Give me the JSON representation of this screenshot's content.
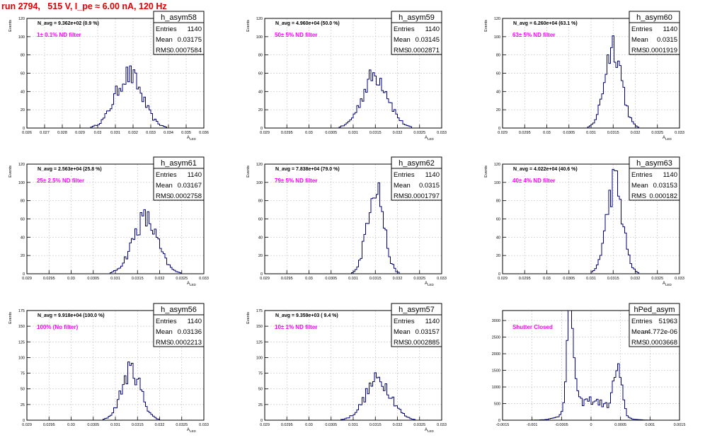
{
  "run_title": "run 2794,   515 V, I_pe ≈ 6.00 nA, 120 Hz",
  "colors": {
    "title": "#e00000",
    "hist": "#00007a",
    "annotation": "#ff00ff",
    "grid": "#c8c8c8"
  },
  "stats_labels": {
    "entries": "Entries",
    "mean": "Mean",
    "rms": "RMS"
  },
  "chart_data": [
    {
      "type": "histogram",
      "name": "h_asym58",
      "title": "",
      "ylabel": "Events",
      "xlabel": "A_LED",
      "navg": "N_avg = 9.362e+02 (0.9 %)",
      "note": "1± 0.1% ND filter",
      "entries": "1140",
      "mean": "0.03175",
      "rms": "0.0007584",
      "xlim": [
        0.026,
        0.036
      ],
      "ylim": [
        0,
        120
      ],
      "yticks": [
        0,
        20,
        40,
        60,
        80,
        100,
        120
      ],
      "xticks": [
        0.026,
        0.027,
        0.028,
        0.029,
        0.03,
        0.031,
        0.032,
        0.033,
        0.034,
        0.035,
        0.036
      ],
      "xtick_labels": [
        "0.026",
        "0.027",
        "0.028",
        "0.029",
        "0.03",
        "0.031",
        "0.032",
        "0.033",
        "0.034",
        "0.035",
        "0.036"
      ],
      "shape": [
        [
          0.03175,
          0.0007584,
          58
        ]
      ]
    },
    {
      "type": "histogram",
      "name": "h_asym59",
      "title": "",
      "ylabel": "Events",
      "xlabel": "A_LED",
      "navg": "N_avg = 4.960e+04 (50.0 %)",
      "note": "50± 5% ND filter",
      "entries": "1140",
      "mean": "0.03145",
      "rms": "0.0002871",
      "xlim": [
        0.029,
        0.033
      ],
      "ylim": [
        0,
        120
      ],
      "yticks": [
        0,
        20,
        40,
        60,
        80,
        100,
        120
      ],
      "xticks": [
        0.029,
        0.0295,
        0.03,
        0.0305,
        0.031,
        0.0315,
        0.032,
        0.0325,
        0.033
      ],
      "xtick_labels": [
        "0.029",
        "0.0295",
        "0.03",
        "0.0305",
        "0.031",
        "0.0315",
        "0.032",
        "0.0325",
        "0.033"
      ],
      "shape": [
        [
          0.0315,
          0.00029,
          58
        ]
      ]
    },
    {
      "type": "histogram",
      "name": "h_asym60",
      "title": "",
      "ylabel": "Events",
      "xlabel": "A_LED",
      "navg": "N_avg = 6.260e+04 (63.1 %)",
      "note": "63± 5% ND filter",
      "entries": "1140",
      "mean": "0.0315",
      "rms": "0.0001919",
      "xlim": [
        0.029,
        0.033
      ],
      "ylim": [
        0,
        120
      ],
      "yticks": [
        0,
        20,
        40,
        60,
        80,
        100,
        120
      ],
      "xticks": [
        0.029,
        0.0295,
        0.03,
        0.0305,
        0.031,
        0.0315,
        0.032,
        0.0325,
        0.033
      ],
      "xtick_labels": [
        "0.029",
        "0.0295",
        "0.03",
        "0.0305",
        "0.031",
        "0.0315",
        "0.032",
        "0.0325",
        "0.033"
      ],
      "shape": [
        [
          0.0315,
          0.00019,
          92
        ]
      ]
    },
    {
      "type": "histogram",
      "name": "h_asym61",
      "title": "",
      "ylabel": "Events",
      "xlabel": "A_LED",
      "navg": "N_avg = 2.563e+04 (25.8 %)",
      "note": "25± 2.5% ND filter",
      "entries": "1140",
      "mean": "0.03167",
      "rms": "0.0002758",
      "xlim": [
        0.029,
        0.033
      ],
      "ylim": [
        0,
        120
      ],
      "yticks": [
        0,
        20,
        40,
        60,
        80,
        100,
        120
      ],
      "xticks": [
        0.029,
        0.0295,
        0.03,
        0.0305,
        0.031,
        0.0315,
        0.032,
        0.0325,
        0.033
      ],
      "xtick_labels": [
        "0.029",
        "0.0295",
        "0.03",
        "0.0305",
        "0.031",
        "0.0315",
        "0.032",
        "0.0325",
        "0.033"
      ],
      "shape": [
        [
          0.03167,
          0.00028,
          60
        ]
      ]
    },
    {
      "type": "histogram",
      "name": "h_asym62",
      "title": "",
      "ylabel": "Events",
      "xlabel": "A_LED",
      "navg": "N_avg = 7.838e+04 (79.0 %)",
      "note": "79± 5% ND filter",
      "entries": "1140",
      "mean": "0.0315",
      "rms": "0.0001797",
      "xlim": [
        0.029,
        0.033
      ],
      "ylim": [
        0,
        120
      ],
      "yticks": [
        0,
        20,
        40,
        60,
        80,
        100,
        120
      ],
      "xticks": [
        0.029,
        0.0295,
        0.03,
        0.0305,
        0.031,
        0.0315,
        0.032,
        0.0325,
        0.033
      ],
      "xtick_labels": [
        "0.029",
        "0.0295",
        "0.03",
        "0.0305",
        "0.031",
        "0.0315",
        "0.032",
        "0.0325",
        "0.033"
      ],
      "shape": [
        [
          0.0315,
          0.00018,
          100
        ]
      ]
    },
    {
      "type": "histogram",
      "name": "h_asym63",
      "title": "",
      "ylabel": "Events",
      "xlabel": "A_LED",
      "navg": "N_avg = 4.022e+04 (40.6 %)",
      "note": "40± 4% ND filter",
      "entries": "1140",
      "mean": "0.03153",
      "rms": "0.000182",
      "xlim": [
        0.029,
        0.033
      ],
      "ylim": [
        0,
        120
      ],
      "yticks": [
        0,
        20,
        40,
        60,
        80,
        100,
        120
      ],
      "xticks": [
        0.029,
        0.0295,
        0.03,
        0.0305,
        0.031,
        0.0315,
        0.032,
        0.0325,
        0.033
      ],
      "xtick_labels": [
        "0.029",
        "0.0295",
        "0.03",
        "0.0305",
        "0.031",
        "0.0315",
        "0.032",
        "0.0325",
        "0.033"
      ],
      "shape": [
        [
          0.03153,
          0.00018,
          100
        ]
      ]
    },
    {
      "type": "histogram",
      "name": "h_asym56",
      "title": "",
      "ylabel": "Events",
      "xlabel": "A_LED",
      "navg": "N_avg = 9.918e+04 (100.0 %)",
      "note": "100% (No filter)",
      "entries": "1140",
      "mean": "0.03136",
      "rms": "0.0002213",
      "xlim": [
        0.029,
        0.033
      ],
      "ylim": [
        0,
        175
      ],
      "yticks": [
        0,
        25,
        50,
        75,
        100,
        125,
        150,
        175
      ],
      "xticks": [
        0.029,
        0.0295,
        0.03,
        0.0305,
        0.031,
        0.0315,
        0.032,
        0.0325,
        0.033
      ],
      "xtick_labels": [
        "0.029",
        "0.0295",
        "0.03",
        "0.0305",
        "0.031",
        "0.0315",
        "0.032",
        "0.0325",
        "0.033"
      ],
      "shape": [
        [
          0.03136,
          0.00022,
          80
        ]
      ]
    },
    {
      "type": "histogram",
      "name": "h_asym57",
      "title": "",
      "ylabel": "Events",
      "xlabel": "A_LED",
      "navg": "N_avg = 9.359e+03 ( 9.4 %)",
      "note": "10± 1% ND filter",
      "entries": "1140",
      "mean": "0.03157",
      "rms": "0.0002885",
      "xlim": [
        0.029,
        0.033
      ],
      "ylim": [
        0,
        175
      ],
      "yticks": [
        0,
        25,
        50,
        75,
        100,
        125,
        150,
        175
      ],
      "xticks": [
        0.029,
        0.0295,
        0.03,
        0.0305,
        0.031,
        0.0315,
        0.032,
        0.0325,
        0.033
      ],
      "xtick_labels": [
        "0.029",
        "0.0295",
        "0.03",
        "0.0305",
        "0.031",
        "0.0315",
        "0.032",
        "0.0325",
        "0.033"
      ],
      "shape": [
        [
          0.03157,
          0.00029,
          65
        ]
      ]
    },
    {
      "type": "histogram",
      "name": "hPed_asym",
      "title": "",
      "ylabel": "",
      "xlabel": "",
      "navg": "",
      "note": "Shutter Closed",
      "entries": "51963",
      "mean": "-4.772e-06",
      "rms": "0.0003668",
      "xlim": [
        -0.0015,
        0.0015
      ],
      "ylim": [
        0,
        3300
      ],
      "yticks": [
        0,
        500,
        1000,
        1500,
        2000,
        2500,
        3000
      ],
      "xticks": [
        -0.0015,
        -0.001,
        -0.0005,
        0,
        0.0005,
        0.001,
        0.0015
      ],
      "xtick_labels": [
        "-0.0015",
        "-0.001",
        "-0.0005",
        "0",
        "0.0005",
        "0.001",
        "0.0015"
      ],
      "shape": [
        [
          -0.00035,
          6e-05,
          3000
        ],
        [
          0.00045,
          7e-05,
          1350
        ],
        [
          0.0,
          0.0003,
          600
        ]
      ]
    }
  ]
}
